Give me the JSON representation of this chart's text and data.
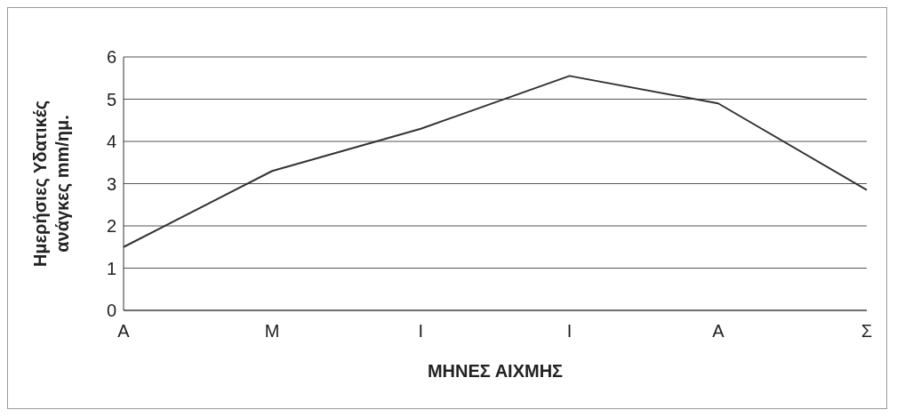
{
  "chart_data": {
    "type": "line",
    "xlabel": "ΜΗΝΕΣ ΑΙΧΜΗΣ",
    "ylabel": "Ημερήσιες Υδατικές ανάγκες mm/ημ.",
    "categories": [
      "Α",
      "Μ",
      "Ι",
      "Ι",
      "Α",
      "Σ"
    ],
    "series": [
      {
        "color": "#333333",
        "values": [
          1.5,
          3.3,
          4.3,
          5.55,
          4.9,
          2.85
        ]
      }
    ],
    "ylim": [
      0,
      6
    ],
    "yticks": [
      0,
      1,
      2,
      3,
      4,
      5,
      6
    ],
    "grid": "y",
    "legend": false,
    "marker": "none",
    "line_style": "solid"
  }
}
